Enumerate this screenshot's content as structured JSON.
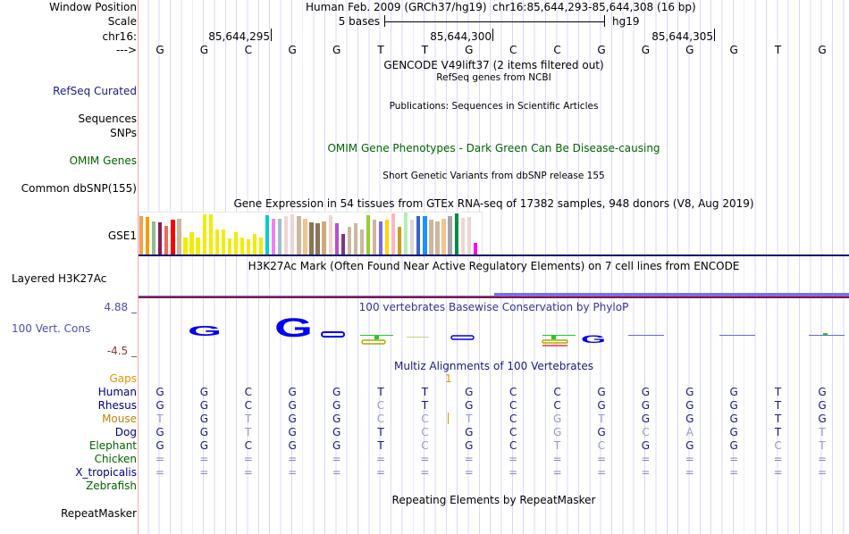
{
  "labels": {
    "window_position": "Window Position",
    "scale": "Scale",
    "chrom": "chr16:",
    "strand": "--->",
    "refseq": "RefSeq Curated",
    "sequences": "Sequences",
    "snps": "SNPs",
    "omim": "OMIM Genes",
    "dbsnp": "Common dbSNP(155)",
    "gse1": "GSE1",
    "h3k27ac": "Layered H3K27Ac",
    "cons_max": "4.88 _",
    "cons": "100 Vert. Cons",
    "cons_min": "-4.5 _",
    "gaps": "Gaps",
    "repeatmasker": "RepeatMasker"
  },
  "header": {
    "assembly": "Human Feb. 2009 (GRCh37/hg19)",
    "position": "chr16:85,644,293-85,644,308 (16 bp)",
    "scale_text": "5 bases",
    "scale_db": "hg19",
    "ticks": [
      "85,644,295",
      "85,644,300",
      "85,644,305"
    ]
  },
  "reference_bases": [
    "G",
    "G",
    "C",
    "G",
    "G",
    "T",
    "T",
    "G",
    "C",
    "C",
    "G",
    "G",
    "G",
    "G",
    "T",
    "G"
  ],
  "tracks": {
    "gencode": "GENCODE V49lift37 (2 items filtered out)",
    "refseq_desc": "RefSeq genes from NCBI",
    "publications": "Publications: Sequences in Scientific Articles",
    "omim_pheno": "OMIM Gene Phenotypes - Dark Green Can Be Disease-causing",
    "dbsnp_desc": "Short Genetic Variants from dbSNP release 155",
    "gtex": "Gene Expression in 54 tissues from GTEx RNA-seq of 17382 samples, 948 donors (V8, Aug 2019)",
    "h3k27ac_desc": "H3K27Ac Mark (Often Found Near Active Regulatory Elements) on 7 cell lines from ENCODE",
    "phylop": "100 vertebrates Basewise Conservation by PhyloP",
    "multiz": "Multiz Alignments of 100 Vertebrates",
    "gap_count": "1",
    "repeatmasker_desc": "Repeating Elements by RepeatMasker"
  },
  "gtex_bars": [
    {
      "c": "#f79d4f",
      "v": 0.95
    },
    {
      "c": "#f0a000",
      "v": 0.93
    },
    {
      "c": "#8fbc8f",
      "v": 0.83
    },
    {
      "c": "#8b1a55",
      "v": 0.8
    },
    {
      "c": "#ee6a50",
      "v": 0.72
    },
    {
      "c": "#ff0000",
      "v": 0.86
    },
    {
      "c": "#cdb79e",
      "v": 0.88
    },
    {
      "c": "#eeee00",
      "v": 0.43
    },
    {
      "c": "#eeee00",
      "v": 0.55
    },
    {
      "c": "#eeee00",
      "v": 0.43
    },
    {
      "c": "#eeee00",
      "v": 1.0
    },
    {
      "c": "#eeee00",
      "v": 1.0
    },
    {
      "c": "#eeee00",
      "v": 0.63
    },
    {
      "c": "#eeee00",
      "v": 0.63
    },
    {
      "c": "#eeee00",
      "v": 0.4
    },
    {
      "c": "#eeee00",
      "v": 0.55
    },
    {
      "c": "#eeee00",
      "v": 0.43
    },
    {
      "c": "#eeee00",
      "v": 0.37
    },
    {
      "c": "#eeee00",
      "v": 0.52
    },
    {
      "c": "#eeee00",
      "v": 0.43
    },
    {
      "c": "#00cdcd",
      "v": 0.98
    },
    {
      "c": "#ee82ee",
      "v": 0.88
    },
    {
      "c": "#9ac0cd",
      "v": 0.88
    },
    {
      "c": "#eed5d2",
      "v": 0.95
    },
    {
      "c": "#eed5d2",
      "v": 1.0
    },
    {
      "c": "#cdb79e",
      "v": 0.95
    },
    {
      "c": "#eec591",
      "v": 0.88
    },
    {
      "c": "#8b7355",
      "v": 0.8
    },
    {
      "c": "#8b7355",
      "v": 0.78
    },
    {
      "c": "#cdaa7d",
      "v": 0.83
    },
    {
      "c": "#eed5d2",
      "v": 0.98
    },
    {
      "c": "#b452cd",
      "v": 0.78
    },
    {
      "c": "#7a378b",
      "v": 0.52
    },
    {
      "c": "#cdb79e",
      "v": 0.7
    },
    {
      "c": "#cdb79e",
      "v": 0.78
    },
    {
      "c": "#cdb79e",
      "v": 0.63
    },
    {
      "c": "#9acd32",
      "v": 0.97
    },
    {
      "c": "#cdb79e",
      "v": 0.86
    },
    {
      "c": "#7b68ee",
      "v": 0.83
    },
    {
      "c": "#ffd700",
      "v": 0.86
    },
    {
      "c": "#ffb6c1",
      "v": 1.03
    },
    {
      "c": "#cd9b1d",
      "v": 0.7
    },
    {
      "c": "#b4eeb4",
      "v": 1.05
    },
    {
      "c": "#d9d9d9",
      "v": 0.86
    },
    {
      "c": "#3a5fcd",
      "v": 0.95
    },
    {
      "c": "#1e90ff",
      "v": 0.95
    },
    {
      "c": "#cdb79e",
      "v": 0.86
    },
    {
      "c": "#cdb79e",
      "v": 0.83
    },
    {
      "c": "#eec591",
      "v": 0.88
    },
    {
      "c": "#a6a6a6",
      "v": 0.95
    },
    {
      "c": "#008b45",
      "v": 1.02
    },
    {
      "c": "#eed5d2",
      "v": 0.92
    },
    {
      "c": "#eed5d2",
      "v": 0.93
    },
    {
      "c": "#ff00ff",
      "v": 0.3
    }
  ],
  "alignment": [
    {
      "species": "Human",
      "color": "#000080",
      "seq": "GGCGGTTGCCGGGGTG"
    },
    {
      "species": "Rhesus",
      "color": "#000080",
      "seq": "GGCGGCTGCCGGGGTG"
    },
    {
      "species": "Mouse",
      "color": "#b8860b",
      "seq": "TGTGGCCTCGTGGGTG"
    },
    {
      "species": "Dog",
      "color": "#000080",
      "seq": "GGTGGTCGCGGCAGTT"
    },
    {
      "species": "Elephant",
      "color": "#006400",
      "seq": "GGCGGTCGCTCGGGCT"
    },
    {
      "species": "Chicken",
      "color": "#006400",
      "seq": "================"
    },
    {
      "species": "X_tropicalis",
      "color": "#000080",
      "seq": "================"
    },
    {
      "species": "Zebrafish",
      "color": "#006400",
      "seq": ""
    }
  ]
}
